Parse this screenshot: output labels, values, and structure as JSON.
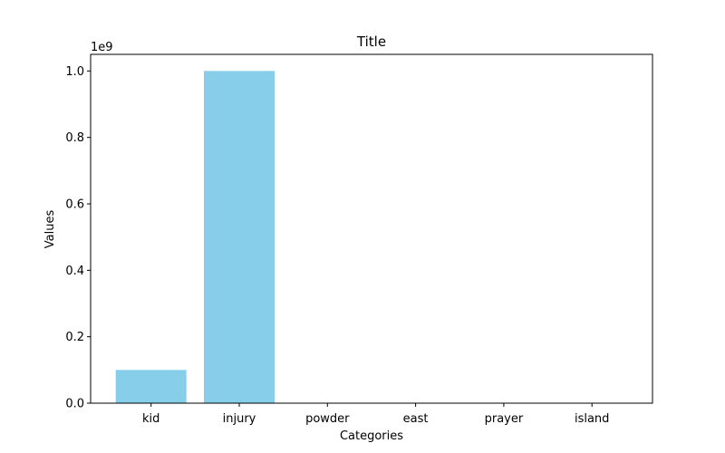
{
  "chart_data": {
    "type": "bar",
    "title": "Title",
    "xlabel": "Categories",
    "ylabel": "Values",
    "categories": [
      "kid",
      "injury",
      "powder",
      "east",
      "prayer",
      "island"
    ],
    "values": [
      100000000,
      1000000000,
      0,
      0,
      0,
      0
    ],
    "ylim": [
      0,
      1050000000
    ],
    "ytick_values": [
      0,
      200000000,
      400000000,
      600000000,
      800000000,
      1000000000
    ],
    "ytick_labels": [
      "0.0",
      "0.2",
      "0.4",
      "0.6",
      "0.8",
      "1.0"
    ],
    "y_offset_label": "1e9",
    "bar_color": "#87CEEB",
    "grid": false,
    "legend": "none"
  }
}
